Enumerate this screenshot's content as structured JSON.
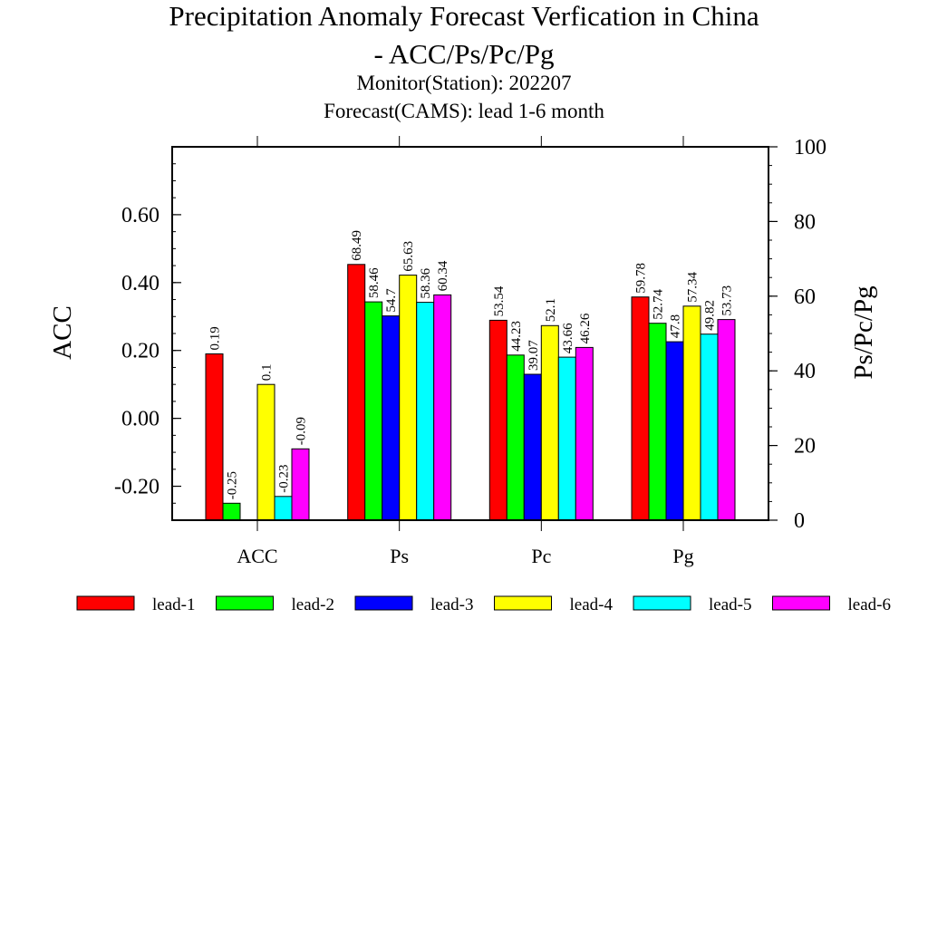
{
  "chart_data": {
    "type": "bar",
    "title": "Precipitation Anomaly Forecast Verfication in China",
    "title_line2": "- ACC/Ps/Pc/Pg",
    "subtitle1": "Monitor(Station): 202207",
    "subtitle2": "Forecast(CAMS): lead 1-6 month",
    "categories": [
      "ACC",
      "Ps",
      "Pc",
      "Pg"
    ],
    "ylabel_left": "ACC",
    "ylabel_right": "Ps/Pc/Pg",
    "ylim_left": [
      -0.3,
      0.8
    ],
    "ylim_right": [
      0,
      100
    ],
    "left_ticks": [
      "-0.20",
      "0.00",
      "0.20",
      "0.40",
      "0.60"
    ],
    "left_tick_values": [
      -0.2,
      0.0,
      0.2,
      0.4,
      0.6
    ],
    "right_ticks": [
      "0",
      "20",
      "40",
      "60",
      "80",
      "100"
    ],
    "right_tick_values": [
      0,
      20,
      40,
      60,
      80,
      100
    ],
    "grid": false,
    "legend_position": "bottom",
    "series": [
      {
        "name": "lead-1",
        "color": "#ff0000",
        "values": [
          0.19,
          68.49,
          53.54,
          59.78
        ],
        "labels": [
          "0.19",
          "68.49",
          "53.54",
          "59.78"
        ]
      },
      {
        "name": "lead-2",
        "color": "#00ff00",
        "values": [
          -0.25,
          58.46,
          44.23,
          52.74
        ],
        "labels": [
          "-0.25",
          "58.46",
          "44.23",
          "52.74"
        ]
      },
      {
        "name": "lead-3",
        "color": "#0000ff",
        "values": [
          null,
          54.7,
          39.07,
          47.8
        ],
        "labels": [
          "",
          "54.7",
          "39.07",
          "47.8"
        ]
      },
      {
        "name": "lead-4",
        "color": "#ffff00",
        "values": [
          0.1,
          65.63,
          52.1,
          57.34
        ],
        "labels": [
          "0.1",
          "65.63",
          "52.1",
          "57.34"
        ]
      },
      {
        "name": "lead-5",
        "color": "#00ffff",
        "values": [
          -0.23,
          58.36,
          43.66,
          49.82
        ],
        "labels": [
          "-0.23",
          "58.36",
          "43.66",
          "49.82"
        ]
      },
      {
        "name": "lead-6",
        "color": "#ff00ff",
        "values": [
          -0.09,
          60.34,
          46.26,
          53.73
        ],
        "labels": [
          "-0.09",
          "60.34",
          "46.26",
          "53.73"
        ]
      }
    ]
  }
}
